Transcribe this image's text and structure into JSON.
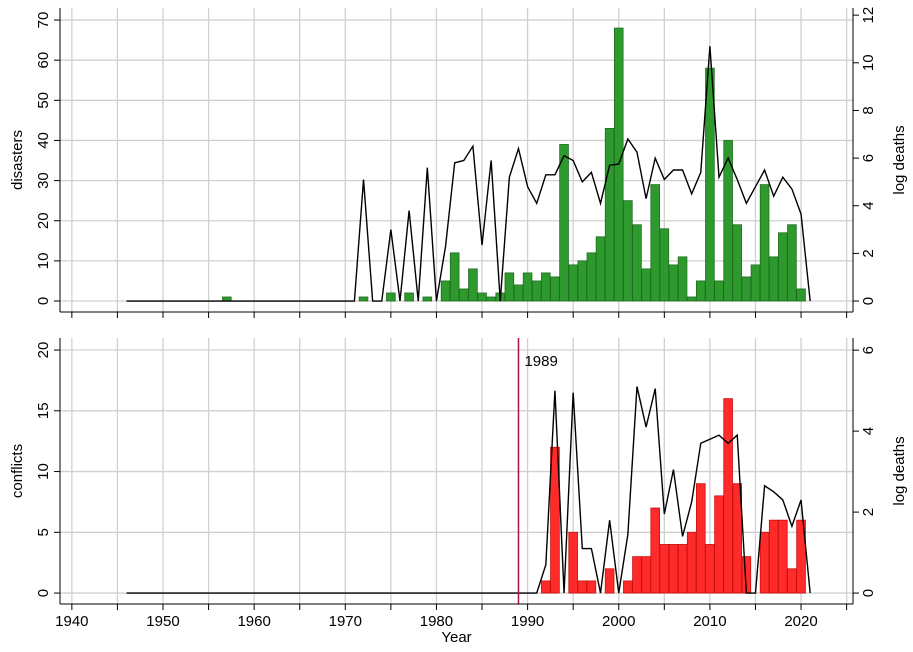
{
  "chart_data": [
    {
      "type": "bar",
      "x": [
        1946,
        1947,
        1948,
        1949,
        1950,
        1951,
        1952,
        1953,
        1954,
        1955,
        1956,
        1957,
        1958,
        1959,
        1960,
        1961,
        1962,
        1963,
        1964,
        1965,
        1966,
        1967,
        1968,
        1969,
        1970,
        1971,
        1972,
        1973,
        1974,
        1975,
        1976,
        1977,
        1978,
        1979,
        1980,
        1981,
        1982,
        1983,
        1984,
        1985,
        1986,
        1987,
        1988,
        1989,
        1990,
        1991,
        1992,
        1993,
        1994,
        1995,
        1996,
        1997,
        1998,
        1999,
        2000,
        2001,
        2002,
        2003,
        2004,
        2005,
        2006,
        2007,
        2008,
        2009,
        2010,
        2011,
        2012,
        2013,
        2014,
        2015,
        2016,
        2017,
        2018,
        2019,
        2020,
        2021
      ],
      "series": [
        {
          "name": "disasters",
          "type": "bar",
          "color": "#2e9a2e",
          "edge": "#1f6e1f",
          "values": [
            0,
            0,
            0,
            0,
            0,
            0,
            0,
            0,
            0,
            0,
            0,
            1,
            0,
            0,
            0,
            0,
            0,
            0,
            0,
            0,
            0,
            0,
            0,
            0,
            0,
            0,
            1,
            0,
            0,
            2,
            0,
            2,
            0,
            1,
            0,
            5,
            12,
            3,
            8,
            2,
            1,
            2,
            7,
            4,
            7,
            5,
            7,
            6,
            39,
            9,
            10,
            12,
            16,
            43,
            68,
            25,
            19,
            8,
            29,
            18,
            9,
            11,
            1,
            5,
            58,
            5,
            40,
            19,
            6,
            9,
            29,
            11,
            17,
            19,
            3,
            0
          ]
        },
        {
          "name": "log deaths",
          "type": "line",
          "axis": "y2",
          "color": "#000000",
          "values": [
            0,
            0,
            0,
            0,
            0,
            0,
            0,
            0,
            0,
            0,
            0,
            0,
            0,
            0,
            0,
            0,
            0,
            0,
            0,
            0,
            0,
            0,
            0,
            0,
            0,
            0,
            5.1,
            0,
            0,
            3.0,
            0,
            3.8,
            0,
            5.6,
            0,
            2.3,
            5.8,
            5.9,
            6.5,
            2.35,
            5.9,
            0,
            5.2,
            6.4,
            4.8,
            4.1,
            5.3,
            5.3,
            6.1,
            5.9,
            5.0,
            5.4,
            4.1,
            5.7,
            5.75,
            6.8,
            6.25,
            4.3,
            6.0,
            5.1,
            5.5,
            5.5,
            4.5,
            5.4,
            10.7,
            5.2,
            6.0,
            5.1,
            4.1,
            4.8,
            5.5,
            4.4,
            5.2,
            4.7,
            3.65,
            0
          ]
        }
      ],
      "xlim": [
        1938.7,
        2025.7
      ],
      "xticks": [
        1940,
        1950,
        1960,
        1970,
        1980,
        1990,
        2000,
        2010,
        2020
      ],
      "xminorticks": [
        1945,
        1955,
        1965,
        1975,
        1985,
        1995,
        2005,
        2015,
        2025
      ],
      "show_xtick_labels": false,
      "ylim": [
        -2.74,
        73
      ],
      "yticks": [
        0,
        10,
        20,
        30,
        40,
        50,
        60,
        70
      ],
      "y2lim": [
        -0.46,
        12.3
      ],
      "y2ticks": [
        0,
        2,
        4,
        6,
        8,
        10,
        12
      ],
      "grid": true
    },
    {
      "type": "bar",
      "x": [
        1946,
        1947,
        1948,
        1949,
        1950,
        1951,
        1952,
        1953,
        1954,
        1955,
        1956,
        1957,
        1958,
        1959,
        1960,
        1961,
        1962,
        1963,
        1964,
        1965,
        1966,
        1967,
        1968,
        1969,
        1970,
        1971,
        1972,
        1973,
        1974,
        1975,
        1976,
        1977,
        1978,
        1979,
        1980,
        1981,
        1982,
        1983,
        1984,
        1985,
        1986,
        1987,
        1988,
        1989,
        1990,
        1991,
        1992,
        1993,
        1994,
        1995,
        1996,
        1997,
        1998,
        1999,
        2000,
        2001,
        2002,
        2003,
        2004,
        2005,
        2006,
        2007,
        2008,
        2009,
        2010,
        2011,
        2012,
        2013,
        2014,
        2015,
        2016,
        2017,
        2018,
        2019,
        2020,
        2021
      ],
      "series": [
        {
          "name": "conflicts",
          "type": "bar",
          "color": "#ff2a2a",
          "edge": "#c81010",
          "values": [
            0,
            0,
            0,
            0,
            0,
            0,
            0,
            0,
            0,
            0,
            0,
            0,
            0,
            0,
            0,
            0,
            0,
            0,
            0,
            0,
            0,
            0,
            0,
            0,
            0,
            0,
            0,
            0,
            0,
            0,
            0,
            0,
            0,
            0,
            0,
            0,
            0,
            0,
            0,
            0,
            0,
            0,
            0,
            0,
            0,
            0,
            1,
            12,
            0,
            5,
            1,
            1,
            0,
            2,
            0,
            1,
            3,
            3,
            7,
            4,
            4,
            4,
            5,
            9,
            4,
            8,
            16,
            9,
            3,
            0,
            5,
            6,
            6,
            2,
            6,
            0
          ]
        },
        {
          "name": "log deaths",
          "type": "line",
          "axis": "y2",
          "color": "#000000",
          "values": [
            0,
            0,
            0,
            0,
            0,
            0,
            0,
            0,
            0,
            0,
            0,
            0,
            0,
            0,
            0,
            0,
            0,
            0,
            0,
            0,
            0,
            0,
            0,
            0,
            0,
            0,
            0,
            0,
            0,
            0,
            0,
            0,
            0,
            0,
            0,
            0,
            0,
            0,
            0,
            0,
            0,
            0,
            0,
            0,
            0,
            0,
            0.7,
            5.0,
            0,
            4.95,
            1.1,
            1.1,
            0,
            1.8,
            0,
            1.45,
            5.1,
            4.1,
            5.05,
            1.95,
            3.05,
            1.4,
            2.25,
            3.7,
            3.8,
            3.9,
            3.7,
            3.9,
            0,
            0,
            2.65,
            2.5,
            2.3,
            1.65,
            2.3,
            0
          ]
        }
      ],
      "vlines": [
        1989
      ],
      "vline_color": "#b0103a",
      "xlabel": "Year",
      "xlim": [
        1938.7,
        2025.7
      ],
      "xticks": [
        1940,
        1950,
        1960,
        1970,
        1980,
        1990,
        2000,
        2010,
        2020
      ],
      "xminorticks": [
        1945,
        1955,
        1965,
        1975,
        1985,
        1995,
        2005,
        2015,
        2025
      ],
      "show_xtick_labels": true,
      "ylim": [
        -0.9,
        20.99
      ],
      "yticks": [
        0,
        5,
        10,
        15,
        20
      ],
      "y2lim": [
        -0.27,
        6.3
      ],
      "y2ticks": [
        0,
        2,
        4,
        6
      ],
      "grid": true
    }
  ]
}
